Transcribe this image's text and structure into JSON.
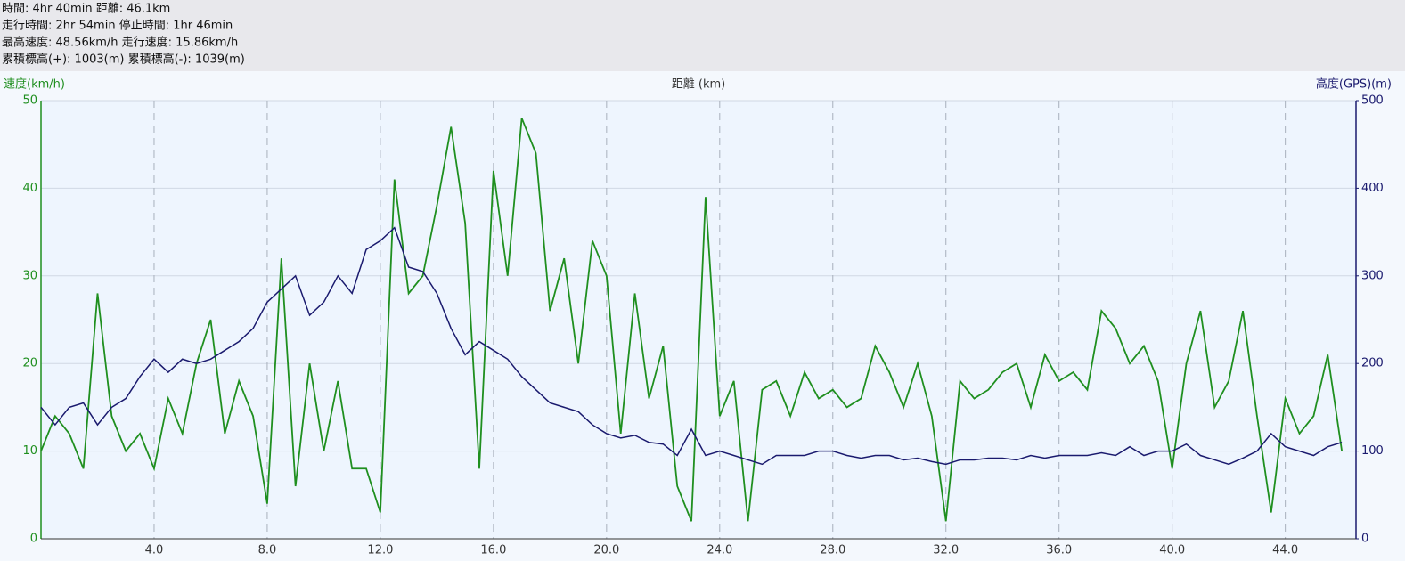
{
  "chart_data": {
    "type": "line",
    "header_lines": [
      "時間: 4hr 40min 距離: 46.1km",
      "走行時間: 2hr 54min 停止時間: 1hr 46min",
      "最高速度: 48.56km/h 走行速度: 15.86km/h",
      "累積標高(+): 1003(m) 累積標高(-): 1039(m)"
    ],
    "ylabel": "速度(km/h)",
    "xlabel": "距離 (km)",
    "y2label": "高度(GPS)(m)",
    "xlim": [
      0,
      46.5
    ],
    "ylim": [
      0,
      50
    ],
    "y2lim": [
      0,
      500
    ],
    "xticks": [
      {
        "value": 4,
        "label": "4.0"
      },
      {
        "value": 8,
        "label": "8.0"
      },
      {
        "value": 12,
        "label": "12.0"
      },
      {
        "value": 16,
        "label": "16.0"
      },
      {
        "value": 20,
        "label": "20.0"
      },
      {
        "value": 24,
        "label": "24.0"
      },
      {
        "value": 28,
        "label": "28.0"
      },
      {
        "value": 32,
        "label": "32.0"
      },
      {
        "value": 36,
        "label": "36.0"
      },
      {
        "value": 40,
        "label": "40.0"
      },
      {
        "value": 44,
        "label": "44.0"
      }
    ],
    "yticks": [
      0,
      10,
      20,
      30,
      40,
      50
    ],
    "y2ticks": [
      0,
      100,
      200,
      300,
      400,
      500
    ],
    "grid": true,
    "x": [
      0,
      0.5,
      1,
      1.5,
      2,
      2.5,
      3,
      3.5,
      4,
      4.5,
      5,
      5.5,
      6,
      6.5,
      7,
      7.5,
      8,
      8.5,
      9,
      9.5,
      10,
      10.5,
      11,
      11.5,
      12,
      12.5,
      13,
      13.5,
      14,
      14.5,
      15,
      15.5,
      16,
      16.5,
      17,
      17.5,
      18,
      18.5,
      19,
      19.5,
      20,
      20.5,
      21,
      21.5,
      22,
      22.5,
      23,
      23.5,
      24,
      24.5,
      25,
      25.5,
      26,
      26.5,
      27,
      27.5,
      28,
      28.5,
      29,
      29.5,
      30,
      30.5,
      31,
      31.5,
      32,
      32.5,
      33,
      33.5,
      34,
      34.5,
      35,
      35.5,
      36,
      36.5,
      37,
      37.5,
      38,
      38.5,
      39,
      39.5,
      40,
      40.5,
      41,
      41.5,
      42,
      42.5,
      43,
      43.5,
      44,
      44.5,
      45,
      45.5,
      46
    ],
    "series": [
      {
        "color": "#1f8f1f",
        "axis": "y",
        "values": [
          10,
          14,
          12,
          8,
          28,
          14,
          10,
          12,
          8,
          16,
          12,
          20,
          25,
          12,
          18,
          14,
          4,
          32,
          6,
          20,
          10,
          18,
          8,
          8,
          3,
          41,
          28,
          30,
          38,
          47,
          36,
          8,
          42,
          30,
          48,
          44,
          26,
          32,
          20,
          34,
          30,
          12,
          28,
          16,
          22,
          6,
          2,
          39,
          14,
          18,
          2,
          17,
          18,
          14,
          19,
          16,
          17,
          15,
          16,
          22,
          19,
          15,
          20,
          14,
          2,
          18,
          16,
          17,
          19,
          20,
          15,
          21,
          18,
          19,
          17,
          26,
          24,
          20,
          22,
          18,
          8,
          20,
          26,
          15,
          18,
          26,
          14,
          3,
          16,
          12,
          14,
          21,
          10
        ]
      },
      {
        "color": "#1a1a6e",
        "axis": "y2",
        "values": [
          150,
          130,
          150,
          155,
          130,
          150,
          160,
          185,
          205,
          190,
          205,
          200,
          205,
          215,
          225,
          240,
          270,
          285,
          300,
          255,
          270,
          300,
          280,
          330,
          340,
          355,
          310,
          305,
          280,
          240,
          210,
          225,
          215,
          205,
          185,
          170,
          155,
          150,
          145,
          130,
          120,
          115,
          118,
          110,
          108,
          95,
          125,
          95,
          100,
          95,
          90,
          85,
          95,
          95,
          95,
          100,
          100,
          95,
          92,
          95,
          95,
          90,
          92,
          88,
          85,
          90,
          90,
          92,
          92,
          90,
          95,
          92,
          95,
          95,
          95,
          98,
          95,
          105,
          95,
          100,
          100,
          108,
          95,
          90,
          85,
          92,
          100,
          120,
          105,
          100,
          95,
          105,
          110
        ]
      }
    ]
  }
}
